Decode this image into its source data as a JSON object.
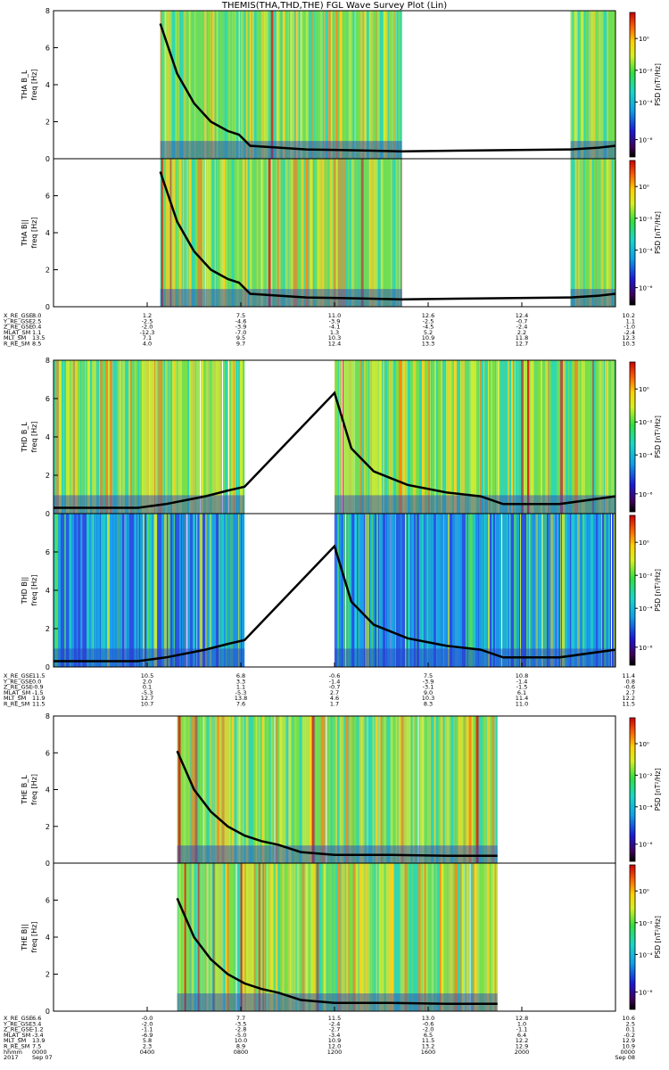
{
  "chart_data": [
    {
      "type": "heatmap",
      "title": "THEMIS(THA,THD,THE) FGL Wave Survey Plot (Lin)",
      "probe": "THA",
      "panels": [
        {
          "name": "THA B_L",
          "ylabel_top": "THA B_L",
          "ylabel_bottom": "freq [Hz]",
          "ylim": [
            0,
            8
          ],
          "yticks": [
            "0",
            "2",
            "4",
            "6",
            "8"
          ],
          "data_segments": [
            [
              0.19,
              0.62
            ],
            [
              0.92,
              1.0
            ]
          ],
          "spectra_style": "warm",
          "gyro_line": [
            [
              0.19,
              7.3
            ],
            [
              0.22,
              4.6
            ],
            [
              0.25,
              3.0
            ],
            [
              0.28,
              2.0
            ],
            [
              0.31,
              1.5
            ],
            [
              0.33,
              1.3
            ],
            [
              0.35,
              0.7
            ],
            [
              0.45,
              0.5
            ],
            [
              0.55,
              0.45
            ],
            [
              0.62,
              0.4
            ],
            [
              0.92,
              0.5
            ],
            [
              0.97,
              0.6
            ],
            [
              1.0,
              0.7
            ]
          ]
        },
        {
          "name": "THA B||",
          "ylabel_top": "THA B||",
          "ylabel_bottom": "freq [Hz]",
          "ylim": [
            0,
            8
          ],
          "yticks": [
            "0",
            "2",
            "4",
            "6",
            "8"
          ],
          "data_segments": [
            [
              0.19,
              0.62
            ],
            [
              0.92,
              1.0
            ]
          ],
          "spectra_style": "warm",
          "gyro_line": [
            [
              0.19,
              7.3
            ],
            [
              0.22,
              4.6
            ],
            [
              0.25,
              3.0
            ],
            [
              0.28,
              2.0
            ],
            [
              0.31,
              1.5
            ],
            [
              0.33,
              1.3
            ],
            [
              0.35,
              0.7
            ],
            [
              0.45,
              0.5
            ],
            [
              0.55,
              0.45
            ],
            [
              0.62,
              0.4
            ],
            [
              0.92,
              0.5
            ],
            [
              0.97,
              0.6
            ],
            [
              1.0,
              0.7
            ]
          ]
        }
      ],
      "colorbar": {
        "label": "PSD [nT²/Hz]",
        "ticks": [
          "10⁰",
          "10⁻²",
          "10⁻⁴",
          "10⁻⁶"
        ]
      },
      "ephemeris": {
        "labels": [
          "X_RE_GSE",
          "Y_RE_GSE",
          "Z_RE_GSE",
          "MLAT_SM",
          "MLT_SM",
          "R_RE_SM"
        ],
        "columns": [
          [
            "8.0",
            "2.5",
            "0.4",
            "1.1",
            "13.5",
            "8.5"
          ],
          [
            "1.2",
            "-2.5",
            "-2.0",
            "-12.3",
            "7.1",
            "4.0"
          ],
          [
            "7.5",
            "-4.6",
            "-3.9",
            "-7.0",
            "9.5",
            "9.7"
          ],
          [
            "11.0",
            "-3.9",
            "-4.1",
            "1.3",
            "10.3",
            "12.4"
          ],
          [
            "12.6",
            "-2.5",
            "-4.5",
            "5.2",
            "10.9",
            "13.3"
          ],
          [
            "12.4",
            "-0.7",
            "-2.4",
            "2.2",
            "11.8",
            "12.7"
          ],
          [
            "10.2",
            "1.1",
            "-1.0",
            "-2.4",
            "12.3",
            "10.3"
          ]
        ]
      }
    },
    {
      "type": "heatmap",
      "probe": "THD",
      "panels": [
        {
          "name": "THD B_L",
          "ylabel_top": "THD B_L",
          "ylabel_bottom": "freq [Hz]",
          "ylim": [
            0,
            8
          ],
          "yticks": [
            "0",
            "2",
            "4",
            "6",
            "8"
          ],
          "data_segments": [
            [
              0.0,
              0.34
            ],
            [
              0.5,
              1.0
            ]
          ],
          "spectra_style": "warm",
          "gyro_line": [
            [
              0.0,
              0.3
            ],
            [
              0.15,
              0.3
            ],
            [
              0.2,
              0.5
            ],
            [
              0.27,
              0.9
            ],
            [
              0.31,
              1.2
            ],
            [
              0.34,
              1.4
            ],
            [
              0.5,
              6.3
            ],
            [
              0.53,
              3.4
            ],
            [
              0.57,
              2.2
            ],
            [
              0.63,
              1.5
            ],
            [
              0.7,
              1.1
            ],
            [
              0.76,
              0.9
            ],
            [
              0.8,
              0.5
            ],
            [
              0.9,
              0.5
            ],
            [
              1.0,
              0.9
            ]
          ]
        },
        {
          "name": "THD B||",
          "ylabel_top": "THD B||",
          "ylabel_bottom": "freq [Hz]",
          "ylim": [
            0,
            8
          ],
          "yticks": [
            "0",
            "2",
            "4",
            "6",
            "8"
          ],
          "data_segments": [
            [
              0.0,
              0.34
            ],
            [
              0.5,
              1.0
            ]
          ],
          "spectra_style": "cool",
          "gyro_line": [
            [
              0.0,
              0.3
            ],
            [
              0.15,
              0.3
            ],
            [
              0.2,
              0.5
            ],
            [
              0.27,
              0.9
            ],
            [
              0.31,
              1.2
            ],
            [
              0.34,
              1.4
            ],
            [
              0.5,
              6.3
            ],
            [
              0.53,
              3.4
            ],
            [
              0.57,
              2.2
            ],
            [
              0.63,
              1.5
            ],
            [
              0.7,
              1.1
            ],
            [
              0.76,
              0.9
            ],
            [
              0.8,
              0.5
            ],
            [
              0.9,
              0.5
            ],
            [
              1.0,
              0.9
            ]
          ]
        }
      ],
      "colorbar": {
        "label": "PSD [nT²/Hz]",
        "ticks": [
          "10⁰",
          "10⁻²",
          "10⁻⁴",
          "10⁻⁶"
        ]
      },
      "ephemeris": {
        "labels": [
          "X_RE_GSE",
          "Y_RE_GSE",
          "Z_RE_GSE",
          "MLAT_SM",
          "MLT_SM",
          "R_RE_SM"
        ],
        "columns": [
          [
            "11.5",
            "0.0",
            "-0.9",
            "-1.5",
            "11.9",
            "11.5"
          ],
          [
            "10.5",
            "2.0",
            "0.1",
            "-5.3",
            "12.7",
            "10.7"
          ],
          [
            "6.8",
            "3.3",
            "1.1",
            "-5.3",
            "13.8",
            "7.6"
          ],
          [
            "-0.6",
            "-1.4",
            "-0.7",
            "2.7",
            "4.6",
            "1.7"
          ],
          [
            "7.5",
            "-3.9",
            "-3.1",
            "9.0",
            "10.3",
            "8.3"
          ],
          [
            "10.8",
            "-1.4",
            "-1.5",
            "6.1",
            "11.4",
            "11.0"
          ],
          [
            "11.4",
            "0.8",
            "-0.6",
            "2.7",
            "12.2",
            "11.5"
          ]
        ]
      }
    },
    {
      "type": "heatmap",
      "probe": "THE",
      "panels": [
        {
          "name": "THE B_L",
          "ylabel_top": "THE B_L",
          "ylabel_bottom": "freq [Hz]",
          "ylim": [
            0,
            8
          ],
          "yticks": [
            "0",
            "2",
            "4",
            "6",
            "8"
          ],
          "data_segments": [
            [
              0.22,
              0.79
            ]
          ],
          "spectra_style": "warm",
          "gyro_line": [
            [
              0.22,
              6.1
            ],
            [
              0.25,
              4.0
            ],
            [
              0.28,
              2.8
            ],
            [
              0.31,
              2.0
            ],
            [
              0.34,
              1.5
            ],
            [
              0.37,
              1.2
            ],
            [
              0.4,
              1.0
            ],
            [
              0.44,
              0.6
            ],
            [
              0.5,
              0.45
            ],
            [
              0.6,
              0.45
            ],
            [
              0.7,
              0.4
            ],
            [
              0.79,
              0.4
            ]
          ]
        },
        {
          "name": "THE B||",
          "ylabel_top": "THE B||",
          "ylabel_bottom": "freq [Hz]",
          "ylim": [
            0,
            8
          ],
          "yticks": [
            "0",
            "2",
            "4",
            "6",
            "8"
          ],
          "data_segments": [
            [
              0.22,
              0.79
            ]
          ],
          "spectra_style": "warm",
          "gyro_line": [
            [
              0.22,
              6.1
            ],
            [
              0.25,
              4.0
            ],
            [
              0.28,
              2.8
            ],
            [
              0.31,
              2.0
            ],
            [
              0.34,
              1.5
            ],
            [
              0.37,
              1.2
            ],
            [
              0.4,
              1.0
            ],
            [
              0.44,
              0.6
            ],
            [
              0.5,
              0.45
            ],
            [
              0.6,
              0.45
            ],
            [
              0.7,
              0.4
            ],
            [
              0.79,
              0.4
            ]
          ]
        }
      ],
      "colorbar": {
        "label": "PSD [nT²/Hz]",
        "ticks": [
          "10⁰",
          "10⁻²",
          "10⁻⁴",
          "10⁻⁶"
        ]
      },
      "ephemeris": {
        "labels": [
          "X_RE_GSE",
          "Y_RE_GSE",
          "Z_RE_GSE",
          "MLAT_SM",
          "MLT_SM",
          "R_RE_SM",
          "hhmm",
          "2017"
        ],
        "columns": [
          [
            "6.6",
            "3.4",
            "-1.2",
            "-3.4",
            "13.9",
            "7.5",
            "0000",
            "Sep 07"
          ],
          [
            "-0.0",
            "-2.0",
            "-1.1",
            "-6.9",
            "5.8",
            "2.3",
            "0400",
            ""
          ],
          [
            "7.7",
            "-3.5",
            "-2.8",
            "-5.0",
            "10.0",
            "8.9",
            "0800",
            ""
          ],
          [
            "11.5",
            "-2.4",
            "-2.7",
            "-3.4",
            "10.9",
            "12.0",
            "1200",
            ""
          ],
          [
            "13.0",
            "-0.6",
            "-2.0",
            "6.5",
            "11.5",
            "13.2",
            "1600",
            ""
          ],
          [
            "12.8",
            "1.0",
            "-1.1",
            "6.4",
            "12.2",
            "12.9",
            "2000",
            ""
          ],
          [
            "10.6",
            "2.5",
            "0.1",
            "-0.2",
            "12.9",
            "10.9",
            "0000",
            "Sep 08"
          ]
        ]
      }
    }
  ]
}
